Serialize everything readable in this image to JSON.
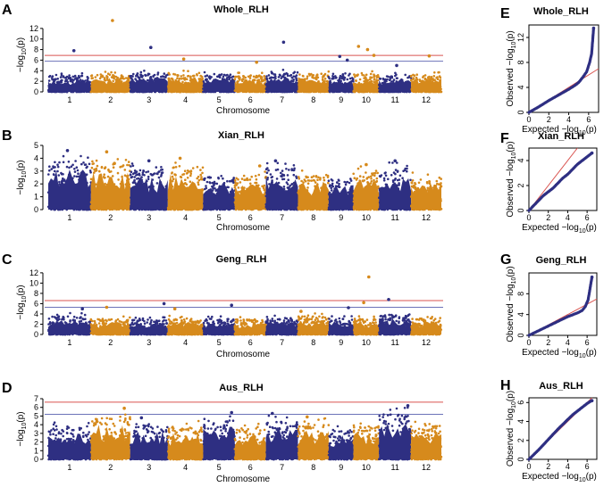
{
  "chart_data": [
    {
      "id": "A",
      "type": "scatter",
      "subtype": "manhattan",
      "panel_letter": "A",
      "title": "Whole_RLH",
      "xlabel": "Chromosome",
      "ylabel": "-log10(p)",
      "ylim": [
        0,
        14
      ],
      "yticks": [
        0,
        2,
        4,
        6,
        8,
        10,
        12
      ],
      "categories": [
        "1",
        "2",
        "3",
        "4",
        "5",
        "6",
        "7",
        "8",
        "9",
        "10",
        "11",
        "12"
      ],
      "threshold_lines": [
        {
          "value": 6.9,
          "color": "#d9534f"
        },
        {
          "value": 5.8,
          "color": "#6b72b8"
        }
      ],
      "baseline_max": [
        3.6,
        3.9,
        4.1,
        4.0,
        3.8,
        3.7,
        4.2,
        4.0,
        3.7,
        3.9,
        3.6,
        3.8
      ],
      "peaks": [
        {
          "chr": 1,
          "pos": 0.6,
          "y": 7.8
        },
        {
          "chr": 2,
          "pos": 0.55,
          "y": 13.5
        },
        {
          "chr": 3,
          "pos": 0.55,
          "y": 8.4
        },
        {
          "chr": 4,
          "pos": 0.45,
          "y": 6.2
        },
        {
          "chr": 6,
          "pos": 0.7,
          "y": 5.6
        },
        {
          "chr": 7,
          "pos": 0.55,
          "y": 9.4
        },
        {
          "chr": 9,
          "pos": 0.45,
          "y": 6.7
        },
        {
          "chr": 9,
          "pos": 0.75,
          "y": 6.0
        },
        {
          "chr": 10,
          "pos": 0.2,
          "y": 8.6
        },
        {
          "chr": 10,
          "pos": 0.55,
          "y": 8.0
        },
        {
          "chr": 10,
          "pos": 0.8,
          "y": 6.9
        },
        {
          "chr": 11,
          "pos": 0.55,
          "y": 5.0
        },
        {
          "chr": 12,
          "pos": 0.6,
          "y": 6.8
        }
      ]
    },
    {
      "id": "B",
      "type": "scatter",
      "subtype": "manhattan",
      "panel_letter": "B",
      "title": "Xian_RLH",
      "xlabel": "Chromosome",
      "ylabel": "-log10(p)",
      "ylim": [
        0,
        5
      ],
      "yticks": [
        0,
        1,
        2,
        3,
        4,
        5
      ],
      "categories": [
        "1",
        "2",
        "3",
        "4",
        "5",
        "6",
        "7",
        "8",
        "9",
        "10",
        "11",
        "12"
      ],
      "threshold_lines": [],
      "baseline_max": [
        4.5,
        4.2,
        3.7,
        4.0,
        3.0,
        3.1,
        3.8,
        3.1,
        2.8,
        3.4,
        3.8,
        3.0
      ],
      "peaks": [
        {
          "chr": 1,
          "pos": 0.45,
          "y": 4.6
        },
        {
          "chr": 2,
          "pos": 0.4,
          "y": 4.5
        },
        {
          "chr": 2,
          "pos": 0.6,
          "y": 3.6
        },
        {
          "chr": 3,
          "pos": 0.5,
          "y": 3.8
        },
        {
          "chr": 4,
          "pos": 0.35,
          "y": 4.0
        },
        {
          "chr": 6,
          "pos": 0.8,
          "y": 3.4
        },
        {
          "chr": 7,
          "pos": 0.3,
          "y": 3.8
        },
        {
          "chr": 10,
          "pos": 0.5,
          "y": 3.5
        },
        {
          "chr": 11,
          "pos": 0.5,
          "y": 3.8
        }
      ]
    },
    {
      "id": "C",
      "type": "scatter",
      "subtype": "manhattan",
      "panel_letter": "C",
      "title": "Geng_RLH",
      "xlabel": "Chromosome",
      "ylabel": "-log10(p)",
      "ylim": [
        0,
        12.5
      ],
      "yticks": [
        0,
        2,
        4,
        6,
        8,
        10,
        12
      ],
      "categories": [
        "1",
        "2",
        "3",
        "4",
        "5",
        "6",
        "7",
        "8",
        "9",
        "10",
        "11",
        "12"
      ],
      "threshold_lines": [
        {
          "value": 6.6,
          "color": "#d9534f"
        },
        {
          "value": 5.3,
          "color": "#6b72b8"
        }
      ],
      "baseline_max": [
        4.2,
        3.5,
        3.5,
        3.7,
        3.6,
        3.5,
        3.8,
        4.2,
        3.6,
        3.6,
        4.5,
        3.8
      ],
      "peaks": [
        {
          "chr": 1,
          "pos": 0.8,
          "y": 5.0
        },
        {
          "chr": 2,
          "pos": 0.4,
          "y": 5.3
        },
        {
          "chr": 3,
          "pos": 0.9,
          "y": 6.0
        },
        {
          "chr": 4,
          "pos": 0.2,
          "y": 5.0
        },
        {
          "chr": 5,
          "pos": 0.9,
          "y": 5.7
        },
        {
          "chr": 8,
          "pos": 0.1,
          "y": 4.5
        },
        {
          "chr": 9,
          "pos": 0.8,
          "y": 5.2
        },
        {
          "chr": 10,
          "pos": 0.4,
          "y": 6.2
        },
        {
          "chr": 10,
          "pos": 0.6,
          "y": 11.2
        },
        {
          "chr": 11,
          "pos": 0.3,
          "y": 6.8
        }
      ]
    },
    {
      "id": "D",
      "type": "scatter",
      "subtype": "manhattan",
      "panel_letter": "D",
      "title": "Aus_RLH",
      "xlabel": "Chromosome",
      "ylabel": "-log10(p)",
      "ylim": [
        0,
        7
      ],
      "yticks": [
        0,
        1,
        2,
        3,
        4,
        5,
        6,
        7
      ],
      "categories": [
        "1",
        "2",
        "3",
        "4",
        "5",
        "6",
        "7",
        "8",
        "9",
        "10",
        "11",
        "12"
      ],
      "threshold_lines": [
        {
          "value": 6.6,
          "color": "#d9534f"
        },
        {
          "value": 5.2,
          "color": "#6b72b8"
        }
      ],
      "baseline_max": [
        4.3,
        5.8,
        4.7,
        4.5,
        5.4,
        4.3,
        5.2,
        4.8,
        4.0,
        4.5,
        6.2,
        4.6
      ],
      "peaks": [
        {
          "chr": 2,
          "pos": 0.85,
          "y": 5.9
        },
        {
          "chr": 3,
          "pos": 0.3,
          "y": 4.8
        },
        {
          "chr": 5,
          "pos": 0.9,
          "y": 5.4
        },
        {
          "chr": 7,
          "pos": 0.2,
          "y": 5.3
        },
        {
          "chr": 8,
          "pos": 0.3,
          "y": 4.9
        },
        {
          "chr": 11,
          "pos": 0.9,
          "y": 6.2
        }
      ]
    },
    {
      "id": "E",
      "type": "scatter",
      "subtype": "qq",
      "panel_letter": "E",
      "title": "Whole_RLH",
      "xlabel": "Expected -log10(p)",
      "ylabel": "Observed -log10(p)",
      "xlim": [
        0,
        7
      ],
      "ylim": [
        0,
        14
      ],
      "xticks": [
        0,
        2,
        4,
        6
      ],
      "yticks": [
        0,
        4,
        8,
        12
      ],
      "reference_line_slope": 1,
      "points": [
        [
          0,
          0
        ],
        [
          1,
          0.9
        ],
        [
          2,
          1.9
        ],
        [
          3,
          2.8
        ],
        [
          4,
          3.7
        ],
        [
          4.6,
          4.3
        ],
        [
          5,
          4.8
        ],
        [
          5.4,
          5.6
        ],
        [
          5.8,
          6.5
        ],
        [
          6.1,
          8.0
        ],
        [
          6.3,
          9.4
        ],
        [
          6.5,
          13.5
        ]
      ]
    },
    {
      "id": "F",
      "type": "scatter",
      "subtype": "qq",
      "panel_letter": "F",
      "title": "Xian_RLH",
      "xlabel": "Expected -log10(p)",
      "ylabel": "Observed -log10(p)",
      "xlim": [
        0,
        7
      ],
      "ylim": [
        0,
        5
      ],
      "xticks": [
        0,
        2,
        4,
        6
      ],
      "yticks": [
        0,
        2,
        4
      ],
      "reference_line_slope": 1,
      "points": [
        [
          0,
          0
        ],
        [
          0.5,
          0.4
        ],
        [
          1,
          0.8
        ],
        [
          1.5,
          1.2
        ],
        [
          2,
          1.5
        ],
        [
          2.5,
          1.8
        ],
        [
          3,
          2.2
        ],
        [
          3.5,
          2.6
        ],
        [
          4,
          2.9
        ],
        [
          4.5,
          3.3
        ],
        [
          5,
          3.7
        ],
        [
          5.5,
          4.0
        ],
        [
          6,
          4.3
        ],
        [
          6.5,
          4.6
        ]
      ]
    },
    {
      "id": "G",
      "type": "scatter",
      "subtype": "qq",
      "panel_letter": "G",
      "title": "Geng_RLH",
      "xlabel": "Expected -log10(p)",
      "ylabel": "Observed -log10(p)",
      "xlim": [
        0,
        7
      ],
      "ylim": [
        0,
        12
      ],
      "xticks": [
        0,
        2,
        4,
        6
      ],
      "yticks": [
        0,
        4,
        8
      ],
      "reference_line_slope": 1,
      "points": [
        [
          0,
          0
        ],
        [
          1,
          0.9
        ],
        [
          2,
          1.8
        ],
        [
          3,
          2.7
        ],
        [
          4,
          3.6
        ],
        [
          5,
          4.3
        ],
        [
          5.5,
          4.8
        ],
        [
          5.8,
          5.5
        ],
        [
          6.1,
          6.8
        ],
        [
          6.5,
          11.2
        ]
      ]
    },
    {
      "id": "H",
      "type": "scatter",
      "subtype": "qq",
      "panel_letter": "H",
      "title": "Aus_RLH",
      "xlabel": "Expected -log10(p)",
      "ylabel": "Observed -log10(p)",
      "xlim": [
        0,
        7
      ],
      "ylim": [
        0,
        6.5
      ],
      "xticks": [
        0,
        2,
        4,
        6
      ],
      "yticks": [
        0,
        2,
        4,
        6
      ],
      "reference_line_slope": 1,
      "points": [
        [
          0,
          0
        ],
        [
          1,
          1.0
        ],
        [
          2,
          2.1
        ],
        [
          3,
          3.2
        ],
        [
          4,
          4.2
        ],
        [
          4.5,
          4.7
        ],
        [
          5,
          5.1
        ],
        [
          5.5,
          5.5
        ],
        [
          6,
          5.9
        ],
        [
          6.3,
          6.1
        ],
        [
          6.5,
          6.2
        ]
      ]
    }
  ],
  "colors": {
    "chrom_odd": "#2e2f82",
    "chrom_even": "#d68a1c",
    "qq_points": "#2e2f82",
    "reference_line": "#d9534f"
  }
}
